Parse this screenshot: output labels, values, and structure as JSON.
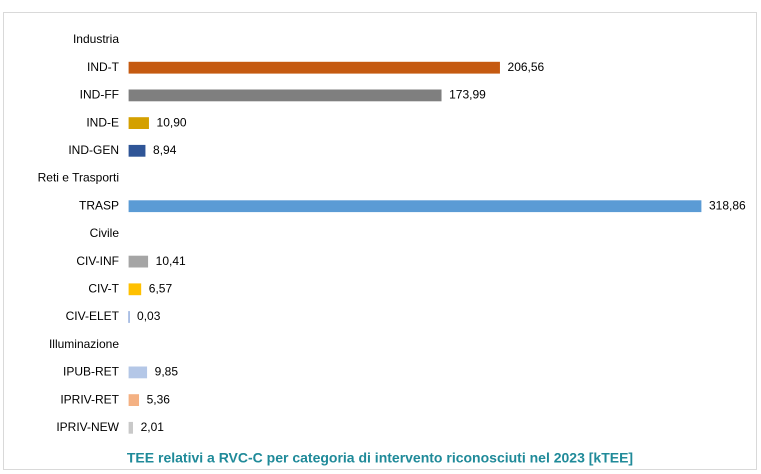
{
  "chart_data": {
    "type": "bar",
    "orientation": "horizontal",
    "title": "TEE relativi a RVC-C per categoria di intervento riconosciuti nel 2023 [kTEE]",
    "categories": [
      "Industria",
      "IND-T",
      "IND-FF",
      "IND-E",
      "IND-GEN",
      "Reti e Trasporti",
      "TRASP",
      "Civile",
      "CIV-INF",
      "CIV-T",
      "CIV-ELET",
      "Illuminazione",
      "IPUB-RET",
      "IPRIV-RET",
      "IPRIV-NEW"
    ],
    "values": [
      null,
      206.56,
      173.99,
      10.9,
      8.94,
      null,
      318.86,
      null,
      10.41,
      6.57,
      0.03,
      null,
      9.85,
      5.36,
      2.01
    ],
    "value_labels": [
      null,
      "206,56",
      "173,99",
      "10,90",
      "8,94",
      null,
      "318,86",
      null,
      "10,41",
      "6,57",
      "0,03",
      null,
      "9,85",
      "5,36",
      "2,01"
    ],
    "colors": [
      null,
      "#c55a11",
      "#7f7f7f",
      "#d4a000",
      "#2f5597",
      null,
      "#5b9bd5",
      null,
      "#a5a5a5",
      "#ffc000",
      "#4472c4",
      null,
      "#b4c7e7",
      "#f4b183",
      "#c9c9c9"
    ],
    "title_color": "#1f8a99"
  }
}
